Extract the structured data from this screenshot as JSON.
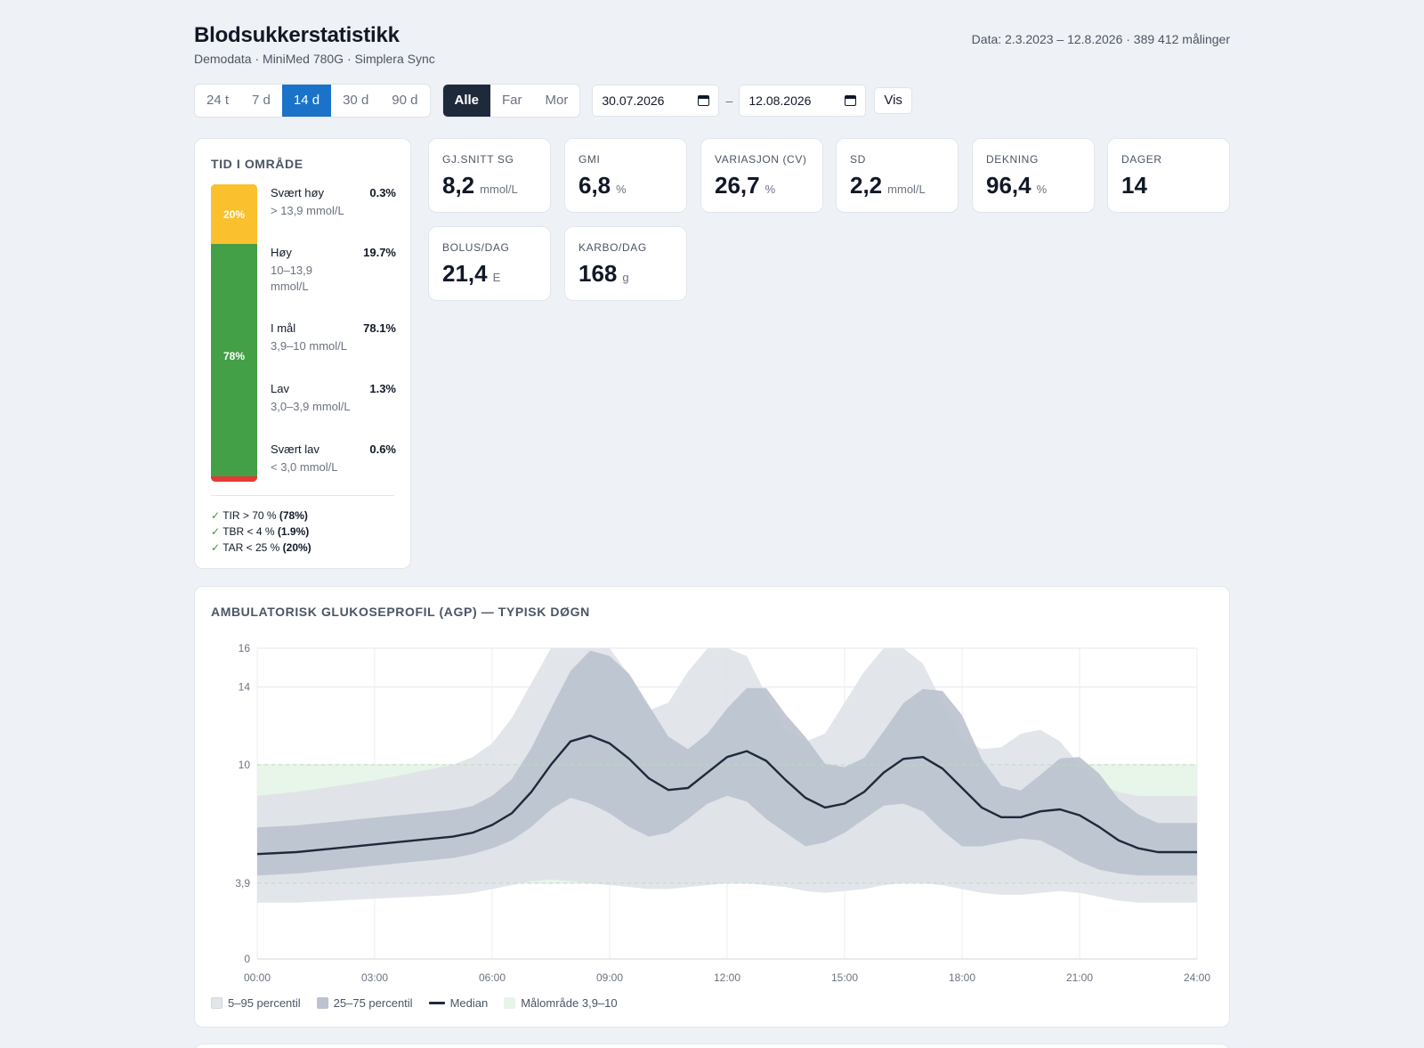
{
  "header": {
    "title": "Blodsukkerstatistikk",
    "subtitle": "Demodata · MiniMed 780G · Simplera Sync",
    "data_info": "Data: 2.3.2023 – 12.8.2026 · 389 412 målinger"
  },
  "toolbar": {
    "periods": [
      {
        "label": "24 t",
        "active": false
      },
      {
        "label": "7 d",
        "active": false
      },
      {
        "label": "14 d",
        "active": true
      },
      {
        "label": "30 d",
        "active": false
      },
      {
        "label": "90 d",
        "active": false
      }
    ],
    "persons": [
      {
        "label": "Alle",
        "active": true
      },
      {
        "label": "Far",
        "active": false
      },
      {
        "label": "Mor",
        "active": false
      }
    ],
    "date_from": "30.07.2026",
    "date_sep": "–",
    "date_to": "12.08.2026",
    "show_label": "Vis"
  },
  "tir": {
    "title": "TID I OMRÅDE",
    "bar_labels": {
      "high": "20%",
      "in_range": "78%"
    },
    "ranges": [
      {
        "name": "Svært høy",
        "range": "> 13,9 mmol/L",
        "pct": "0.3%"
      },
      {
        "name": "Høy",
        "range": "10–13,9 mmol/L",
        "pct": "19.7%"
      },
      {
        "name": "I mål",
        "range": "3,9–10 mmol/L",
        "pct": "78.1%"
      },
      {
        "name": "Lav",
        "range": "3,0–3,9 mmol/L",
        "pct": "1.3%"
      },
      {
        "name": "Svært lav",
        "range": "< 3,0 mmol/L",
        "pct": "0.6%"
      }
    ],
    "checks": [
      {
        "text": "TIR > 70 %",
        "value": "(78%)"
      },
      {
        "text": "TBR < 4 %",
        "value": "(1.9%)"
      },
      {
        "text": "TAR < 25 %",
        "value": "(20%)"
      }
    ],
    "colors": {
      "very_high": "#fbc02d",
      "in_range": "#43a047",
      "very_low": "#e53935"
    }
  },
  "stats": [
    {
      "label": "GJ.SNITT SG",
      "value": "8,2",
      "unit": "mmol/L"
    },
    {
      "label": "GMI",
      "value": "6,8",
      "unit": "%"
    },
    {
      "label": "VARIASJON (CV)",
      "value": "26,7",
      "unit": "%"
    },
    {
      "label": "SD",
      "value": "2,2",
      "unit": "mmol/L"
    },
    {
      "label": "DEKNING",
      "value": "96,4",
      "unit": "%"
    },
    {
      "label": "DAGER",
      "value": "14",
      "unit": ""
    },
    {
      "label": "BOLUS/DAG",
      "value": "21,4",
      "unit": "E"
    },
    {
      "label": "KARBO/DAG",
      "value": "168",
      "unit": "g"
    }
  ],
  "agp": {
    "title": "AMBULATORISK GLUKOSEPROFIL (AGP) — TYPISK DØGN",
    "legend": [
      {
        "label": "5–95 percentil",
        "color": "#e2e5ea"
      },
      {
        "label": "25–75 percentil",
        "color": "#bcc3cf"
      },
      {
        "label": "Median",
        "color": "#1e293b"
      },
      {
        "label": "Målområde 3,9–10",
        "color": "#e6f5e8"
      }
    ]
  },
  "chart_data": {
    "type": "area",
    "title": "AMBULATORISK GLUKOSEPROFIL (AGP) — TYPISK DØGN",
    "x_ticks": [
      "00:00",
      "03:00",
      "06:00",
      "09:00",
      "12:00",
      "15:00",
      "18:00",
      "21:00",
      "24:00"
    ],
    "y_ticks": [
      0,
      3.9,
      10,
      14,
      16
    ],
    "xlim": [
      0,
      24
    ],
    "ylim": [
      0,
      16
    ],
    "target_range": [
      3.9,
      10
    ],
    "x": [
      0,
      1,
      2,
      3,
      4,
      5,
      5.5,
      6,
      6.5,
      7,
      7.5,
      8,
      8.5,
      9,
      9.5,
      10,
      10.5,
      11,
      11.5,
      12,
      12.5,
      13,
      13.5,
      14,
      14.5,
      15,
      15.5,
      16,
      16.5,
      17,
      17.5,
      18,
      18.5,
      19,
      19.5,
      20,
      20.5,
      21,
      21.5,
      22,
      22.5,
      23,
      23.5,
      24
    ],
    "series": [
      {
        "name": "5–95 percentil",
        "lower": [
          2.9,
          2.9,
          3.0,
          3.1,
          3.2,
          3.3,
          3.4,
          3.6,
          3.8,
          4.0,
          4.1,
          4.0,
          3.9,
          3.8,
          3.7,
          3.6,
          3.6,
          3.7,
          3.8,
          3.9,
          3.9,
          3.8,
          3.7,
          3.5,
          3.4,
          3.5,
          3.6,
          3.8,
          3.9,
          3.9,
          3.8,
          3.6,
          3.4,
          3.3,
          3.3,
          3.4,
          3.5,
          3.4,
          3.2,
          3.0,
          2.9,
          2.9,
          2.9,
          2.9
        ],
        "upper": [
          8.4,
          8.6,
          8.9,
          9.2,
          9.6,
          10.0,
          10.4,
          11.1,
          12.4,
          14.2,
          16.0,
          16.0,
          16.0,
          16.0,
          14.6,
          12.8,
          13.2,
          14.8,
          16.0,
          16.0,
          15.6,
          13.6,
          11.8,
          11.2,
          11.6,
          13.2,
          14.8,
          16.0,
          16.0,
          15.2,
          13.2,
          11.4,
          10.8,
          10.9,
          11.6,
          11.8,
          11.2,
          10.0,
          9.0,
          8.6,
          8.4,
          8.4,
          8.4,
          8.4
        ]
      },
      {
        "name": "25–75 percentil",
        "lower": [
          4.3,
          4.4,
          4.6,
          4.8,
          5.0,
          5.2,
          5.4,
          5.7,
          6.1,
          6.8,
          7.7,
          8.3,
          8.0,
          7.5,
          6.8,
          6.3,
          6.5,
          7.2,
          8.0,
          8.4,
          8.1,
          7.2,
          6.5,
          5.8,
          6.0,
          6.5,
          7.2,
          7.9,
          8.0,
          7.6,
          6.6,
          5.8,
          5.8,
          6.0,
          6.2,
          6.1,
          5.6,
          5.0,
          4.6,
          4.4,
          4.3,
          4.3,
          4.3,
          4.3
        ]
      },
      {
        "name": "Median",
        "values": [
          5.4,
          5.5,
          5.7,
          5.9,
          6.1,
          6.3,
          6.5,
          6.9,
          7.5,
          8.6,
          10.0,
          11.2,
          11.5,
          11.1,
          10.3,
          9.3,
          8.7,
          8.8,
          9.6,
          10.4,
          10.7,
          10.2,
          9.2,
          8.3,
          7.8,
          8.0,
          8.6,
          9.6,
          10.3,
          10.4,
          9.8,
          8.8,
          7.8,
          7.3,
          7.3,
          7.6,
          7.7,
          7.4,
          6.8,
          6.1,
          5.7,
          5.5,
          5.5,
          5.5
        ]
      }
    ]
  }
}
